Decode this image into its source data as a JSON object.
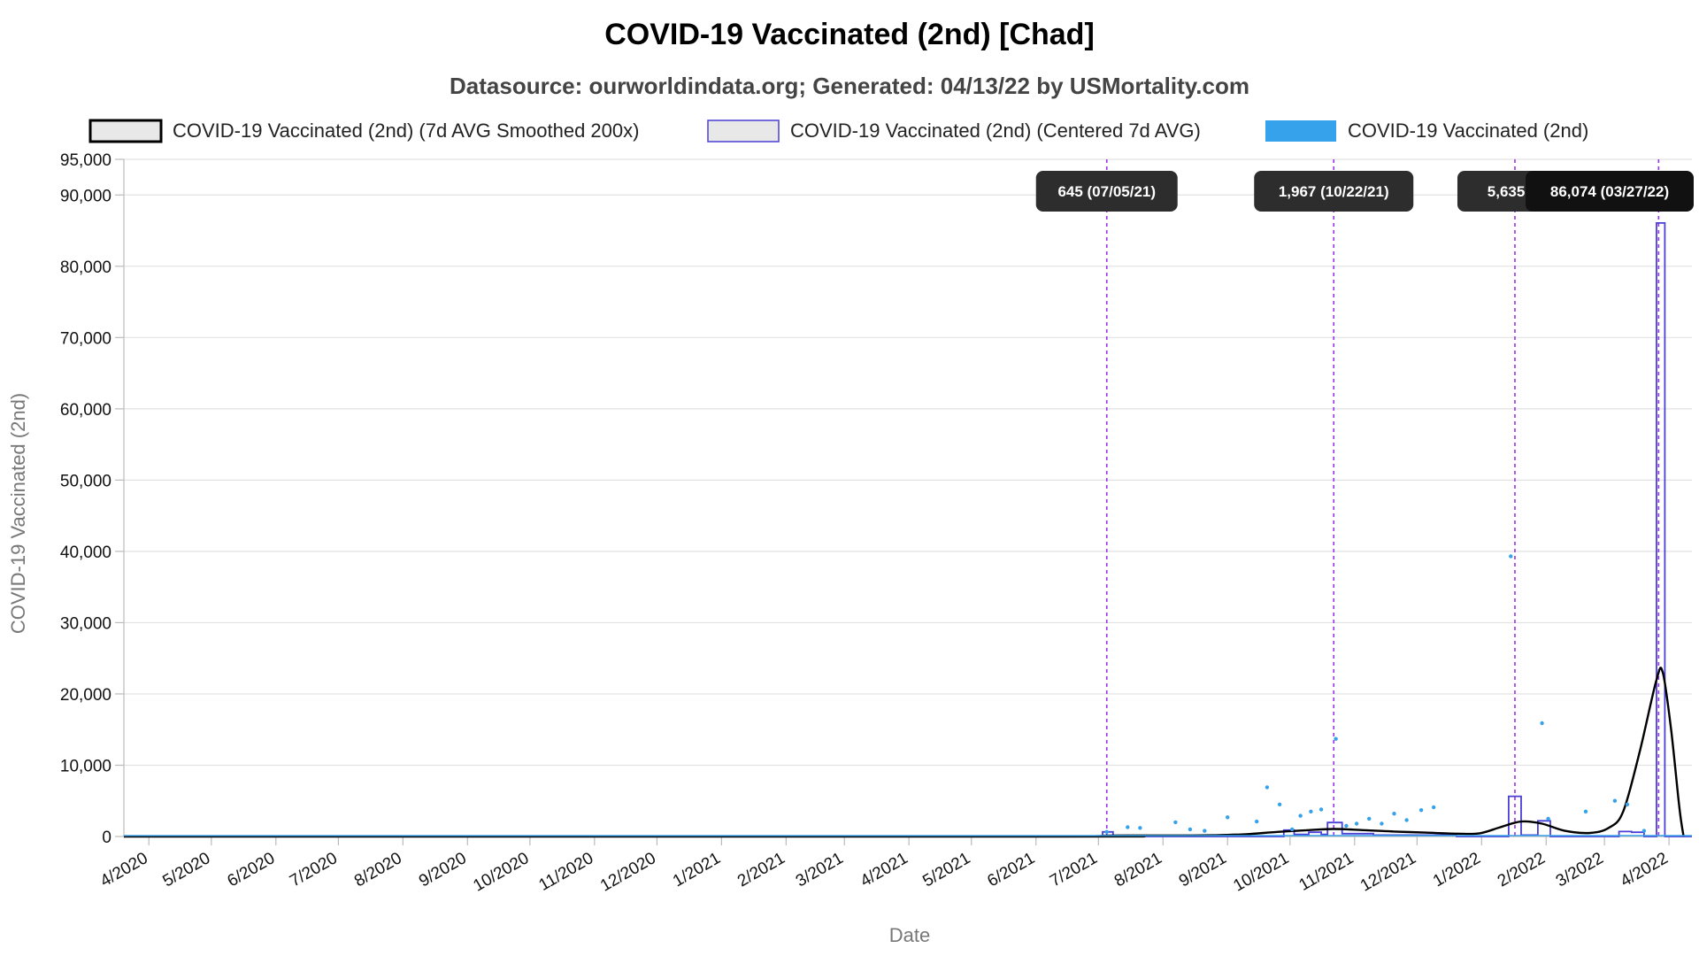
{
  "chart_data": {
    "type": "line",
    "title": "COVID-19 Vaccinated (2nd) [Chad]",
    "subtitle": "Datasource: ourworldindata.org; Generated: 04/13/22 by USMortality.com",
    "xlabel": "Date",
    "ylabel": "COVID-19 Vaccinated (2nd)",
    "x_start": "2020-03-20",
    "x_end": "2022-04-12",
    "ylim": [
      0,
      95000
    ],
    "yticks": [
      {
        "v": 0,
        "label": "0"
      },
      {
        "v": 10000,
        "label": "10,000"
      },
      {
        "v": 20000,
        "label": "20,000"
      },
      {
        "v": 30000,
        "label": "30,000"
      },
      {
        "v": 40000,
        "label": "40,000"
      },
      {
        "v": 50000,
        "label": "50,000"
      },
      {
        "v": 60000,
        "label": "60,000"
      },
      {
        "v": 70000,
        "label": "70,000"
      },
      {
        "v": 80000,
        "label": "80,000"
      },
      {
        "v": 90000,
        "label": "90,000"
      },
      {
        "v": 95000,
        "label": "95,000"
      }
    ],
    "xticks": [
      {
        "d": "2020-04-01",
        "label": "4/2020"
      },
      {
        "d": "2020-05-01",
        "label": "5/2020"
      },
      {
        "d": "2020-06-01",
        "label": "6/2020"
      },
      {
        "d": "2020-07-01",
        "label": "7/2020"
      },
      {
        "d": "2020-08-01",
        "label": "8/2020"
      },
      {
        "d": "2020-09-01",
        "label": "9/2020"
      },
      {
        "d": "2020-10-01",
        "label": "10/2020"
      },
      {
        "d": "2020-11-01",
        "label": "11/2020"
      },
      {
        "d": "2020-12-01",
        "label": "12/2020"
      },
      {
        "d": "2021-01-01",
        "label": "1/2021"
      },
      {
        "d": "2021-02-01",
        "label": "2/2021"
      },
      {
        "d": "2021-03-01",
        "label": "3/2021"
      },
      {
        "d": "2021-04-01",
        "label": "4/2021"
      },
      {
        "d": "2021-05-01",
        "label": "5/2021"
      },
      {
        "d": "2021-06-01",
        "label": "6/2021"
      },
      {
        "d": "2021-07-01",
        "label": "7/2021"
      },
      {
        "d": "2021-08-01",
        "label": "8/2021"
      },
      {
        "d": "2021-09-01",
        "label": "9/2021"
      },
      {
        "d": "2021-10-01",
        "label": "10/2021"
      },
      {
        "d": "2021-11-01",
        "label": "11/2021"
      },
      {
        "d": "2021-12-01",
        "label": "12/2021"
      },
      {
        "d": "2022-01-01",
        "label": "1/2022"
      },
      {
        "d": "2022-02-01",
        "label": "2/2022"
      },
      {
        "d": "2022-03-01",
        "label": "3/2022"
      },
      {
        "d": "2022-04-01",
        "label": "4/2022"
      }
    ],
    "grid": true,
    "legend_position": "top",
    "series": [
      {
        "name": "COVID-19 Vaccinated (2nd) (7d AVG Smoothed 200x)",
        "kind": "smooth-line",
        "color": "#000000",
        "points": [
          [
            "2020-03-20",
            0
          ],
          [
            "2021-06-15",
            0
          ],
          [
            "2021-06-30",
            50
          ],
          [
            "2021-07-05",
            120
          ],
          [
            "2021-07-20",
            150
          ],
          [
            "2021-08-05",
            150
          ],
          [
            "2021-08-25",
            180
          ],
          [
            "2021-09-10",
            320
          ],
          [
            "2021-09-25",
            650
          ],
          [
            "2021-10-10",
            900
          ],
          [
            "2021-10-22",
            1050
          ],
          [
            "2021-11-05",
            900
          ],
          [
            "2021-11-20",
            700
          ],
          [
            "2021-12-05",
            550
          ],
          [
            "2021-12-20",
            400
          ],
          [
            "2021-12-31",
            450
          ],
          [
            "2022-01-10",
            1300
          ],
          [
            "2022-01-20",
            2100
          ],
          [
            "2022-01-30",
            1800
          ],
          [
            "2022-02-10",
            800
          ],
          [
            "2022-02-22",
            500
          ],
          [
            "2022-03-03",
            1200
          ],
          [
            "2022-03-10",
            3500
          ],
          [
            "2022-03-18",
            12000
          ],
          [
            "2022-03-26",
            22000
          ],
          [
            "2022-03-29",
            23000
          ],
          [
            "2022-04-02",
            15000
          ],
          [
            "2022-04-06",
            4000
          ],
          [
            "2022-04-08",
            0
          ]
        ]
      },
      {
        "name": "COVID-19 Vaccinated (2nd) (Centered 7d AVG)",
        "kind": "step-line",
        "color": "#4a3fd6",
        "points": [
          [
            "2020-03-20",
            0
          ],
          [
            "2021-07-03",
            0
          ],
          [
            "2021-07-03",
            645
          ],
          [
            "2021-07-08",
            645
          ],
          [
            "2021-07-08",
            0
          ],
          [
            "2021-09-28",
            0
          ],
          [
            "2021-09-28",
            900
          ],
          [
            "2021-10-03",
            900
          ],
          [
            "2021-10-03",
            300
          ],
          [
            "2021-10-10",
            300
          ],
          [
            "2021-10-10",
            600
          ],
          [
            "2021-10-16",
            600
          ],
          [
            "2021-10-16",
            300
          ],
          [
            "2021-10-19",
            300
          ],
          [
            "2021-10-19",
            1967
          ],
          [
            "2021-10-26",
            1967
          ],
          [
            "2021-10-26",
            400
          ],
          [
            "2021-11-10",
            400
          ],
          [
            "2021-11-10",
            200
          ],
          [
            "2021-12-20",
            200
          ],
          [
            "2021-12-20",
            0
          ],
          [
            "2022-01-14",
            0
          ],
          [
            "2022-01-14",
            5635
          ],
          [
            "2022-01-20",
            5635
          ],
          [
            "2022-01-20",
            200
          ],
          [
            "2022-01-28",
            200
          ],
          [
            "2022-01-28",
            2200
          ],
          [
            "2022-02-03",
            2200
          ],
          [
            "2022-02-03",
            0
          ],
          [
            "2022-03-08",
            0
          ],
          [
            "2022-03-08",
            700
          ],
          [
            "2022-03-14",
            700
          ],
          [
            "2022-03-14",
            600
          ],
          [
            "2022-03-20",
            600
          ],
          [
            "2022-03-20",
            0
          ],
          [
            "2022-03-26",
            0
          ],
          [
            "2022-03-26",
            86074
          ],
          [
            "2022-03-30",
            86074
          ],
          [
            "2022-03-30",
            0
          ],
          [
            "2022-04-12",
            0
          ]
        ]
      },
      {
        "name": "COVID-19 Vaccinated (2nd)",
        "kind": "scatter",
        "color": "#36a2eb",
        "points": [
          [
            "2021-07-05",
            645
          ],
          [
            "2021-07-15",
            1300
          ],
          [
            "2021-07-21",
            1200
          ],
          [
            "2021-08-07",
            2000
          ],
          [
            "2021-08-14",
            1000
          ],
          [
            "2021-08-21",
            800
          ],
          [
            "2021-09-01",
            2700
          ],
          [
            "2021-09-15",
            2100
          ],
          [
            "2021-09-20",
            6900
          ],
          [
            "2021-09-26",
            4500
          ],
          [
            "2021-10-02",
            1000
          ],
          [
            "2021-10-06",
            2900
          ],
          [
            "2021-10-11",
            3500
          ],
          [
            "2021-10-16",
            3800
          ],
          [
            "2021-10-23",
            13700
          ],
          [
            "2021-10-28",
            1500
          ],
          [
            "2021-11-02",
            1800
          ],
          [
            "2021-11-08",
            2500
          ],
          [
            "2021-11-14",
            1800
          ],
          [
            "2021-11-20",
            3200
          ],
          [
            "2021-11-26",
            2300
          ],
          [
            "2021-12-03",
            3700
          ],
          [
            "2021-12-09",
            4100
          ],
          [
            "2022-01-15",
            39300
          ],
          [
            "2022-01-30",
            15900
          ],
          [
            "2022-02-02",
            2500
          ],
          [
            "2022-02-20",
            3500
          ],
          [
            "2022-03-06",
            5000
          ],
          [
            "2022-03-12",
            4500
          ],
          [
            "2022-03-20",
            800
          ]
        ]
      }
    ],
    "annotations": [
      {
        "d": "2021-07-05",
        "label": "645 (07/05/21)"
      },
      {
        "d": "2021-10-22",
        "label": "1,967 (10/22/21)"
      },
      {
        "d": "2022-01-17",
        "label": "5,635 (0"
      },
      {
        "d": "2022-03-27",
        "label": "86,074 (03/27/22)"
      }
    ]
  }
}
